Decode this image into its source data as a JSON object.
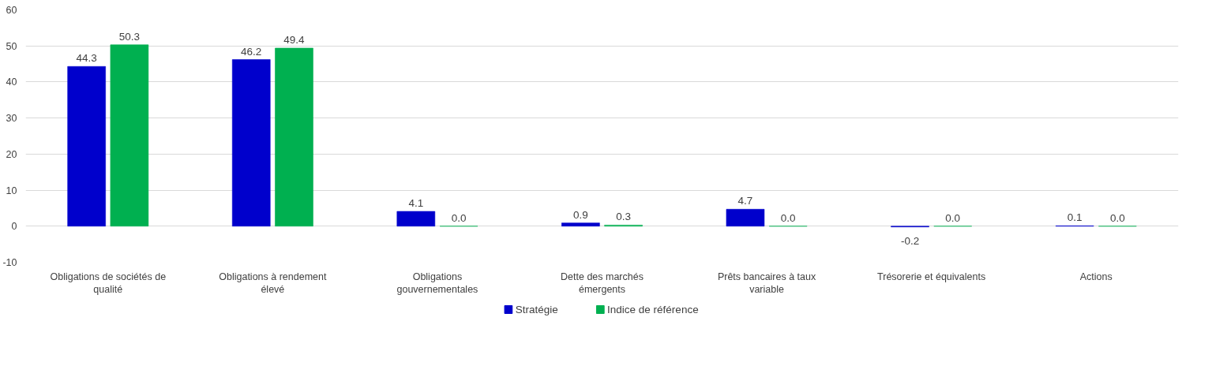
{
  "chart_data": {
    "type": "bar",
    "categories": [
      "Obligations de sociétés de qualité",
      "Obligations à rendement élevé",
      "Obligations gouvernementales",
      "Dette des marchés émergents",
      "Prêts bancaires à taux variable",
      "Trésorerie et équivalents",
      "Actions"
    ],
    "series": [
      {
        "name": "Stratégie",
        "color": "#0000cc",
        "values": [
          44.3,
          46.2,
          4.1,
          0.9,
          4.7,
          -0.2,
          0.1
        ],
        "value_labels": [
          "44.3",
          "46.2",
          "4.1",
          "0.9",
          "4.7",
          "-0.2",
          "0.1"
        ]
      },
      {
        "name": "Indice de référence",
        "color": "#00b050",
        "values": [
          50.3,
          49.4,
          0,
          0.3,
          0,
          0,
          0
        ],
        "value_labels": [
          "50.3",
          "49.4",
          "0.0",
          "0.3",
          "0.0",
          "0.0",
          "0.0"
        ]
      }
    ],
    "ylim": [
      -10,
      60
    ],
    "yticks": [
      -10,
      0,
      10,
      20,
      30,
      40,
      50,
      60
    ],
    "grid": "y",
    "legend": "bottom"
  }
}
